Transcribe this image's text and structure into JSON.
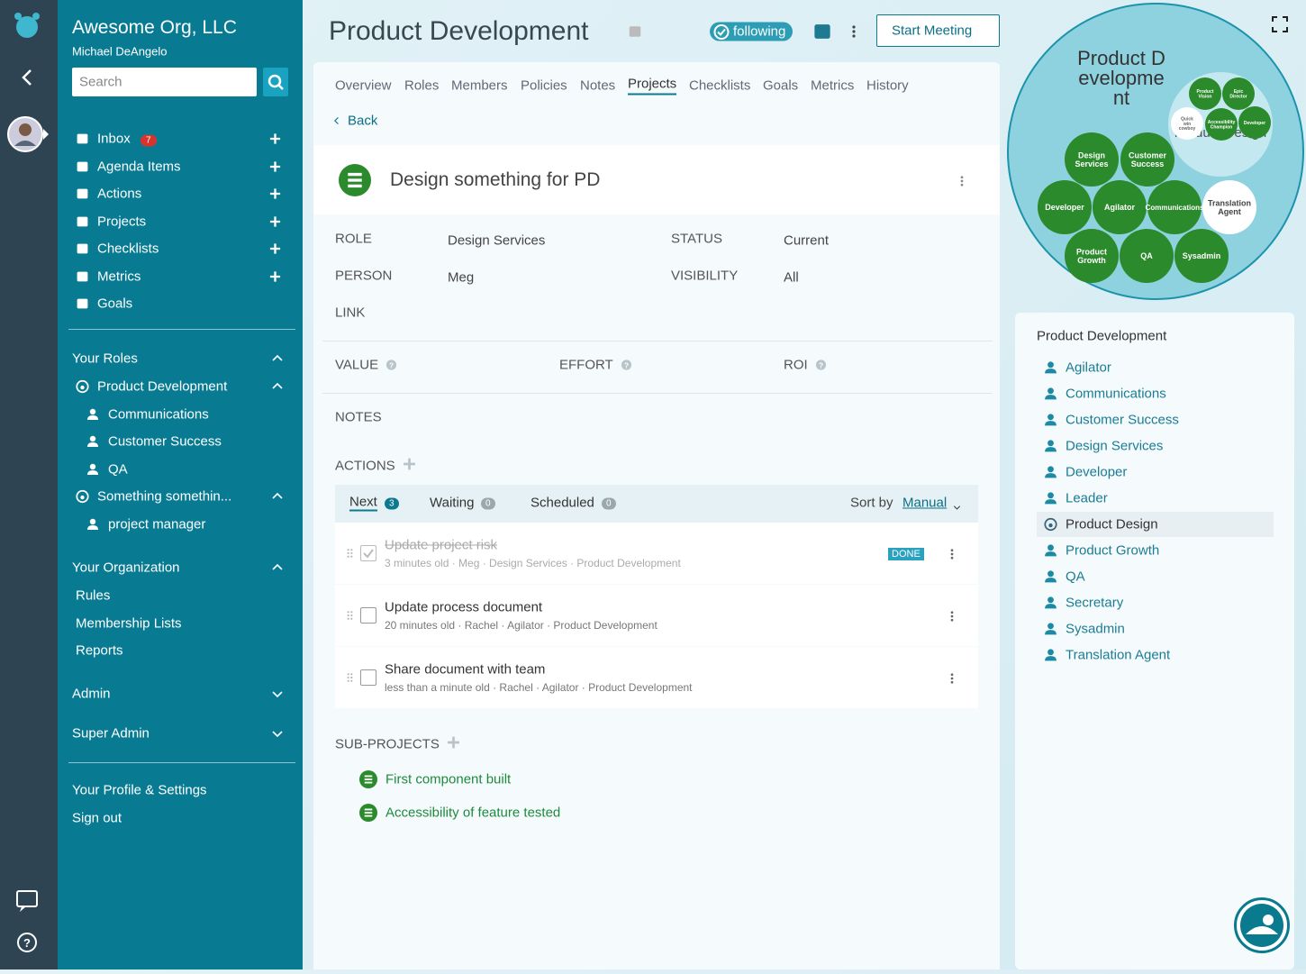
{
  "org": {
    "name": "Awesome Org, LLC",
    "user": "Michael DeAngelo",
    "search": "Search"
  },
  "nav": [
    {
      "label": "Inbox",
      "badge": 7
    },
    {
      "label": "Agenda Items"
    },
    {
      "label": "Actions"
    },
    {
      "label": "Projects"
    },
    {
      "label": "Checklists"
    },
    {
      "label": "Metrics"
    },
    {
      "label": "Goals"
    }
  ],
  "roles": {
    "title": "Your Roles",
    "circles": [
      {
        "name": "Product Development",
        "roles": [
          "Communications",
          "Customer Success",
          "QA"
        ]
      },
      {
        "name": "Something somethin...",
        "roles": [
          "project manager"
        ]
      }
    ]
  },
  "organization": {
    "title": "Your Organization",
    "links": [
      "Rules",
      "Membership Lists",
      "Reports"
    ]
  },
  "admin": "Admin",
  "super_admin": "Super Admin",
  "profile": "Your Profile & Settings",
  "sign_out": "Sign out",
  "header": {
    "title": "Product Development",
    "following": "following",
    "start_meeting": "Start Meeting"
  },
  "tabs": {
    "items": [
      "Overview",
      "Roles",
      "Members",
      "Policies",
      "Notes",
      "Projects",
      "Checklists",
      "Goals",
      "Metrics",
      "History"
    ],
    "active": 5
  },
  "back": "Back",
  "project": {
    "title": "Design something for PD",
    "fields": [
      {
        "label": "ROLE",
        "value": "Design Services"
      },
      {
        "label": "STATUS",
        "value": "Current"
      },
      {
        "label": "PERSON",
        "value": "Meg"
      },
      {
        "label": "VISIBILITY",
        "value": "All"
      },
      {
        "label": "LINK"
      }
    ],
    "metrics": [
      "VALUE",
      "EFFORT",
      "ROI"
    ],
    "notes": "NOTES",
    "actions_title": "ACTIONS",
    "action_tabs": [
      {
        "label": "Next",
        "count": 3
      },
      {
        "label": "Waiting",
        "count": 0
      },
      {
        "label": "Scheduled",
        "count": 0
      }
    ],
    "sort_label": "Sort by",
    "sort_value": "Manual",
    "actions": [
      {
        "title": "Update project risk",
        "meta": "3 minutes old · Meg · Design Services · Product Development",
        "done": true,
        "status": "DONE"
      },
      {
        "title": "Update process document",
        "meta": "20 minutes old · Rachel · Agilator · Product Development",
        "done": false
      },
      {
        "title": "Share document with team",
        "meta": "less than a minute old · Rachel · Agilator · Product Development",
        "done": false
      }
    ],
    "subprojects_title": "SUB-PROJECTS",
    "subprojects": [
      "First component built",
      "Accessibility of feature tested"
    ]
  },
  "map": {
    "title": "Product Development",
    "inner": {
      "name": "Product Design",
      "roles": [
        "Product Vision",
        "Epic Director",
        "Quick win cowboy",
        "Accessibility Champion",
        "Developer"
      ]
    },
    "bubbles": [
      "Design Services",
      "Customer Success",
      "Developer",
      "Agilator",
      "Communications",
      "Translation Agent",
      "Product Growth",
      "QA",
      "Sysadmin"
    ],
    "color": "#2b8a2b"
  },
  "panel": {
    "title": "Product Development",
    "roles": [
      "Agilator",
      "Communications",
      "Customer Success",
      "Design Services",
      "Developer",
      "Leader",
      "Product Design",
      "Product Growth",
      "QA",
      "Secretary",
      "Sysadmin",
      "Translation Agent"
    ],
    "circle_index": 6
  }
}
